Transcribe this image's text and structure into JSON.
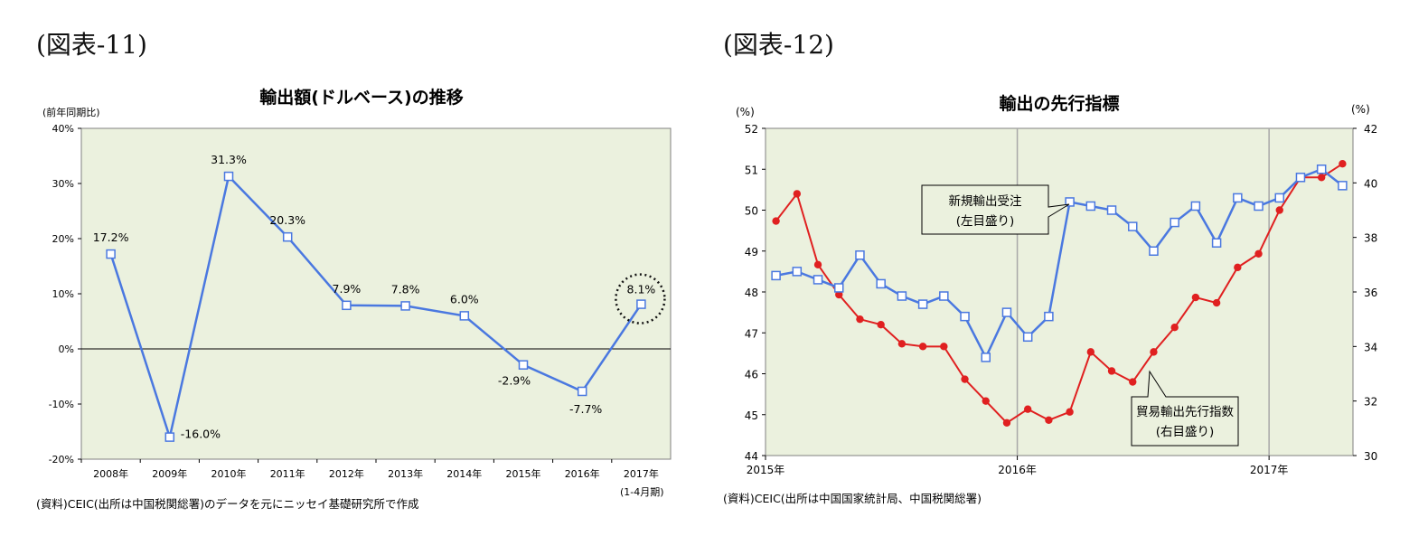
{
  "figures": {
    "fig11": {
      "label": "(図表-11)"
    },
    "fig12": {
      "label": "(図表-12)"
    }
  },
  "chart_data": [
    {
      "type": "line",
      "title": "輸出額(ドルベース)の推移",
      "ylabel": "(前年同期比)",
      "ylim": [
        -20,
        40
      ],
      "yticks": [
        "40%",
        "30%",
        "20%",
        "10%",
        "0%",
        "-10%",
        "-20%"
      ],
      "ytick_values": [
        40,
        30,
        20,
        10,
        0,
        -10,
        -20
      ],
      "categories": [
        "2008年",
        "2009年",
        "2010年",
        "2011年",
        "2012年",
        "2013年",
        "2014年",
        "2015年",
        "2016年",
        "2017年"
      ],
      "last_category_note": "(1-4月期)",
      "values": [
        17.2,
        -16.0,
        31.3,
        20.3,
        7.9,
        7.8,
        6.0,
        -2.9,
        -7.7,
        8.1
      ],
      "data_labels": [
        "17.2%",
        "-16.0%",
        "31.3%",
        "20.3%",
        "7.9%",
        "7.8%",
        "6.0%",
        "-2.9%",
        "-7.7%",
        "8.1%"
      ],
      "highlight_index": 9,
      "line_color": "#4a78e0",
      "plot_bg": "#ebf1de",
      "source": "(資料)CEIC(出所は中国税関総署)のデータを元にニッセイ基礎研究所で作成"
    },
    {
      "type": "line",
      "title": "輸出の先行指標",
      "left_unit": "(%)",
      "right_unit": "(%)",
      "ylim_left": [
        44,
        52
      ],
      "ylim_right": [
        30,
        42
      ],
      "left_ticks": [
        "52",
        "51",
        "50",
        "49",
        "48",
        "47",
        "46",
        "45",
        "44"
      ],
      "left_tick_values": [
        52,
        51,
        50,
        49,
        48,
        47,
        46,
        45,
        44
      ],
      "right_ticks": [
        "42",
        "40",
        "38",
        "36",
        "34",
        "32",
        "30"
      ],
      "right_tick_values": [
        42,
        40,
        38,
        36,
        34,
        32,
        30
      ],
      "x_labels": [
        "2015年",
        "2016年",
        "2017年"
      ],
      "x_label_months": [
        0,
        12,
        24
      ],
      "month_count": 28,
      "series": [
        {
          "name": "新規輸出受注",
          "axis": "left",
          "color": "#4a78e0",
          "marker": "square",
          "values": [
            48.4,
            48.5,
            48.3,
            48.1,
            48.9,
            48.2,
            47.9,
            47.7,
            47.9,
            47.4,
            46.4,
            47.5,
            46.9,
            47.4,
            50.2,
            50.1,
            50.0,
            49.6,
            49.0,
            49.7,
            50.1,
            49.2,
            50.3,
            50.1,
            50.3,
            50.8,
            51.0,
            50.6
          ]
        },
        {
          "name": "貿易輸出先行指数",
          "axis": "right",
          "color": "#e02020",
          "marker": "circle",
          "values": [
            38.6,
            39.6,
            37.0,
            35.9,
            35.0,
            34.8,
            34.1,
            34.0,
            34.0,
            32.8,
            32.0,
            31.2,
            31.7,
            31.3,
            31.6,
            33.8,
            33.1,
            32.7,
            33.8,
            34.7,
            35.8,
            35.6,
            36.9,
            37.4,
            39.0,
            40.2,
            40.2,
            40.7
          ]
        }
      ],
      "callout_orders": {
        "line1": "新規輸出受注",
        "line2": "(左目盛り)"
      },
      "callout_index": {
        "line1": "貿易輸出先行指数",
        "line2": "(右目盛り)"
      },
      "plot_bg": "#ebf1de",
      "source": "(資料)CEIC(出所は中国国家統計局、中国税関総署)"
    }
  ]
}
